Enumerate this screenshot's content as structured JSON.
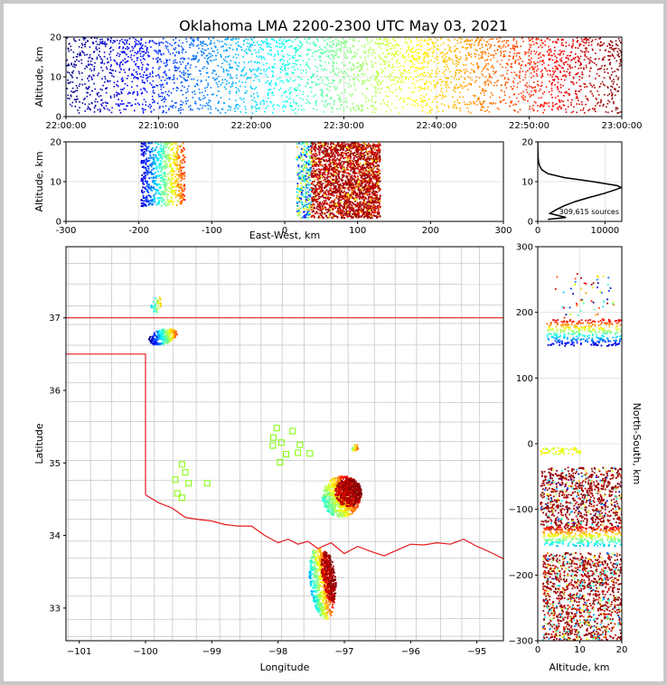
{
  "title": "Oklahoma LMA 2200-2300 UTC May 03, 2021",
  "colors": {
    "jet": [
      "#00007f",
      "#0000ff",
      "#007fff",
      "#00ffff",
      "#7fff7f",
      "#ffff00",
      "#ff7f00",
      "#ff0000",
      "#7f0000"
    ],
    "state_border": "#e41a1c",
    "county_border": "#c8c8c8",
    "station": "#7cfc00",
    "grid": "#dddddd"
  },
  "chart_data": [
    {
      "id": "time_height",
      "type": "scatter",
      "ylabel": "Altitude, km",
      "xlim": [
        "22:00:00",
        "23:00:00"
      ],
      "ylim": [
        0,
        20
      ],
      "x_ticks": [
        "22:00:00",
        "22:10:00",
        "22:20:00",
        "22:30:00",
        "22:40:00",
        "22:50:00",
        "23:00:00"
      ],
      "y_ticks": [
        "0",
        "10",
        "20"
      ],
      "color_by": "time",
      "grid": true
    },
    {
      "id": "ew_height",
      "type": "scatter",
      "xlabel": "East-West, km",
      "ylabel": "Altitude, km",
      "xlim": [
        -300,
        300
      ],
      "ylim": [
        0,
        20
      ],
      "x_ticks": [
        "-300",
        "-200",
        "-100",
        "0",
        "100",
        "200",
        "300"
      ],
      "y_ticks": [
        "0",
        "10",
        "20"
      ],
      "clusters": [
        {
          "x_range": [
            -200,
            -140
          ],
          "z_range": [
            3,
            20
          ]
        },
        {
          "x_range": [
            15,
            130
          ],
          "z_range": [
            1,
            20
          ]
        }
      ],
      "grid": true
    },
    {
      "id": "altitude_histogram",
      "type": "line",
      "xlim": [
        0,
        12500
      ],
      "ylim": [
        0,
        20
      ],
      "x_ticks": [
        "0",
        "10000"
      ],
      "y_ticks": [
        "0",
        "10",
        "20"
      ],
      "source_count_label": "309,615 sources",
      "profile": {
        "altitude_km": [
          0.5,
          1,
          1.5,
          2,
          3,
          4,
          5,
          6,
          7,
          8,
          8.5,
          9,
          10,
          11,
          12,
          13,
          14,
          15,
          16,
          18,
          20
        ],
        "count": [
          1500,
          4200,
          3000,
          1800,
          2800,
          4000,
          5600,
          7600,
          9800,
          11600,
          12400,
          11800,
          8200,
          4000,
          1500,
          600,
          250,
          120,
          60,
          20,
          5
        ]
      },
      "grid": true
    },
    {
      "id": "plan_view",
      "type": "scatter",
      "xlabel": "Longitude",
      "ylabel": "Latitude",
      "xlim": [
        -101.2,
        -94.6
      ],
      "ylim": [
        32.55,
        37.98
      ],
      "x_ticks": [
        "−101",
        "−100",
        "−99",
        "−98",
        "−97",
        "−96",
        "−95"
      ],
      "y_ticks": [
        "33",
        "34",
        "35",
        "36",
        "37"
      ],
      "stations": [
        [
          -99.45,
          34.98
        ],
        [
          -99.4,
          34.87
        ],
        [
          -99.55,
          34.77
        ],
        [
          -99.35,
          34.72
        ],
        [
          -99.52,
          34.58
        ],
        [
          -99.45,
          34.52
        ],
        [
          -99.07,
          34.72
        ],
        [
          -98.02,
          35.48
        ],
        [
          -97.78,
          35.44
        ],
        [
          -98.07,
          35.35
        ],
        [
          -97.95,
          35.28
        ],
        [
          -98.08,
          35.24
        ],
        [
          -97.67,
          35.25
        ],
        [
          -97.7,
          35.14
        ],
        [
          -97.88,
          35.12
        ],
        [
          -97.52,
          35.13
        ],
        [
          -97.97,
          35.01
        ]
      ],
      "grid": true
    },
    {
      "id": "ns_height",
      "type": "scatter",
      "xlabel": "Altitude, km",
      "ylabel": "North-South, km",
      "xlim": [
        0,
        20
      ],
      "ylim": [
        -300,
        300
      ],
      "x_ticks": [
        "0",
        "10",
        "20"
      ],
      "y_ticks": [
        "−300",
        "−200",
        "−100",
        "0",
        "100",
        "200",
        "300"
      ],
      "grid": true
    }
  ]
}
